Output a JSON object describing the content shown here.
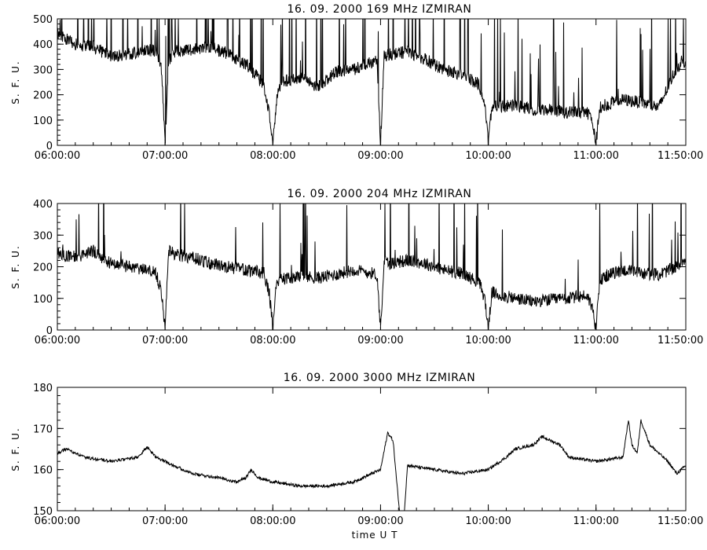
{
  "figure": {
    "xlabel": "time   U T"
  },
  "chart_data": [
    {
      "type": "line",
      "title": "16.  09.  2000    169 MHz    IZMIRAN",
      "ylabel": "S. F. U.",
      "xlabel": "",
      "xlim": [
        "06:00:00",
        "11:50:00"
      ],
      "ylim": [
        0,
        500
      ],
      "yticks": [
        0,
        100,
        200,
        300,
        400,
        500
      ],
      "xticks": [
        "06:00:00",
        "07:00:00",
        "08:00:00",
        "09:00:00",
        "10:00:00",
        "11:00:00",
        "11:50:00"
      ],
      "grid": false,
      "series": [
        {
          "x": [
            "06:00",
            "06:10",
            "06:20",
            "06:30",
            "06:40",
            "06:50",
            "06:55",
            "06:58",
            "07:00",
            "07:02",
            "07:05",
            "07:15",
            "07:25",
            "07:35",
            "07:45",
            "07:55",
            "07:58",
            "08:00",
            "08:02",
            "08:05",
            "08:15",
            "08:25",
            "08:35",
            "08:45",
            "08:55",
            "08:58",
            "09:00",
            "09:02",
            "09:05",
            "09:15",
            "09:25",
            "09:35",
            "09:45",
            "09:55",
            "09:58",
            "10:00",
            "10:02",
            "10:05",
            "10:15",
            "10:25",
            "10:35",
            "10:45",
            "10:55",
            "10:58",
            "11:00",
            "11:02",
            "11:05",
            "11:15",
            "11:25",
            "11:35",
            "11:45",
            "11:50"
          ],
          "y": [
            440,
            400,
            390,
            350,
            360,
            380,
            370,
            300,
            5,
            330,
            370,
            380,
            390,
            360,
            320,
            240,
            120,
            5,
            180,
            250,
            270,
            230,
            290,
            300,
            330,
            330,
            10,
            350,
            360,
            370,
            340,
            300,
            280,
            240,
            160,
            10,
            160,
            150,
            160,
            140,
            140,
            130,
            130,
            100,
            5,
            150,
            160,
            180,
            170,
            150,
            310,
            330
          ]
        }
      ]
    },
    {
      "type": "line",
      "title": "16.  09.  2000    204 MHz    IZMIRAN",
      "ylabel": "S. F. U.",
      "xlabel": "",
      "xlim": [
        "06:00:00",
        "11:50:00"
      ],
      "ylim": [
        0,
        400
      ],
      "yticks": [
        0,
        100,
        200,
        300,
        400
      ],
      "xticks": [
        "06:00:00",
        "07:00:00",
        "08:00:00",
        "09:00:00",
        "10:00:00",
        "11:00:00",
        "11:50:00"
      ],
      "grid": false,
      "series": [
        {
          "x": [
            "06:00",
            "06:10",
            "06:20",
            "06:30",
            "06:40",
            "06:50",
            "06:55",
            "06:58",
            "07:00",
            "07:02",
            "07:05",
            "07:15",
            "07:25",
            "07:35",
            "07:45",
            "07:55",
            "07:58",
            "08:00",
            "08:02",
            "08:05",
            "08:15",
            "08:25",
            "08:35",
            "08:45",
            "08:55",
            "08:58",
            "09:00",
            "09:02",
            "09:05",
            "09:15",
            "09:25",
            "09:35",
            "09:45",
            "09:55",
            "09:58",
            "10:00",
            "10:02",
            "10:05",
            "10:15",
            "10:25",
            "10:35",
            "10:45",
            "10:55",
            "10:58",
            "11:00",
            "11:02",
            "11:05",
            "11:15",
            "11:25",
            "11:35",
            "11:45",
            "11:50"
          ],
          "y": [
            240,
            230,
            250,
            210,
            200,
            190,
            180,
            120,
            5,
            250,
            240,
            230,
            210,
            200,
            190,
            180,
            120,
            5,
            150,
            160,
            170,
            165,
            175,
            190,
            180,
            175,
            5,
            220,
            210,
            220,
            210,
            190,
            180,
            150,
            100,
            5,
            120,
            110,
            100,
            90,
            95,
            100,
            110,
            70,
            5,
            150,
            170,
            190,
            180,
            175,
            200,
            230
          ]
        }
      ]
    },
    {
      "type": "line",
      "title": "16.  09.  2000    3000 MHz    IZMIRAN",
      "ylabel": "S. F. U.",
      "xlabel": "time   U T",
      "xlim": [
        "06:00:00",
        "11:50:00"
      ],
      "ylim": [
        150,
        180
      ],
      "yticks": [
        150,
        160,
        170,
        180
      ],
      "xticks": [
        "06:00:00",
        "07:00:00",
        "08:00:00",
        "09:00:00",
        "10:00:00",
        "11:00:00",
        "11:50:00"
      ],
      "grid": false,
      "series": [
        {
          "x": [
            "06:00",
            "06:05",
            "06:15",
            "06:30",
            "06:45",
            "06:50",
            "06:55",
            "07:00",
            "07:15",
            "07:30",
            "07:40",
            "07:45",
            "07:48",
            "07:52",
            "08:00",
            "08:15",
            "08:30",
            "08:45",
            "09:00",
            "09:04",
            "09:07",
            "09:09",
            "09:11",
            "09:13",
            "09:15",
            "09:30",
            "09:45",
            "10:00",
            "10:10",
            "10:15",
            "10:25",
            "10:30",
            "10:40",
            "10:45",
            "11:00",
            "11:15",
            "11:18",
            "11:20",
            "11:23",
            "11:25",
            "11:30",
            "11:40",
            "11:45",
            "11:50"
          ],
          "y": [
            164,
            165,
            163,
            162,
            163,
            165.5,
            163,
            162,
            159,
            158,
            157,
            158,
            160,
            158,
            157,
            156,
            156,
            157,
            160,
            169,
            167,
            157,
            148,
            148,
            161,
            160,
            159,
            160,
            163,
            165,
            166,
            168,
            166,
            163,
            162,
            163,
            172,
            166,
            164,
            172,
            166,
            162,
            159,
            161
          ]
        }
      ]
    }
  ]
}
